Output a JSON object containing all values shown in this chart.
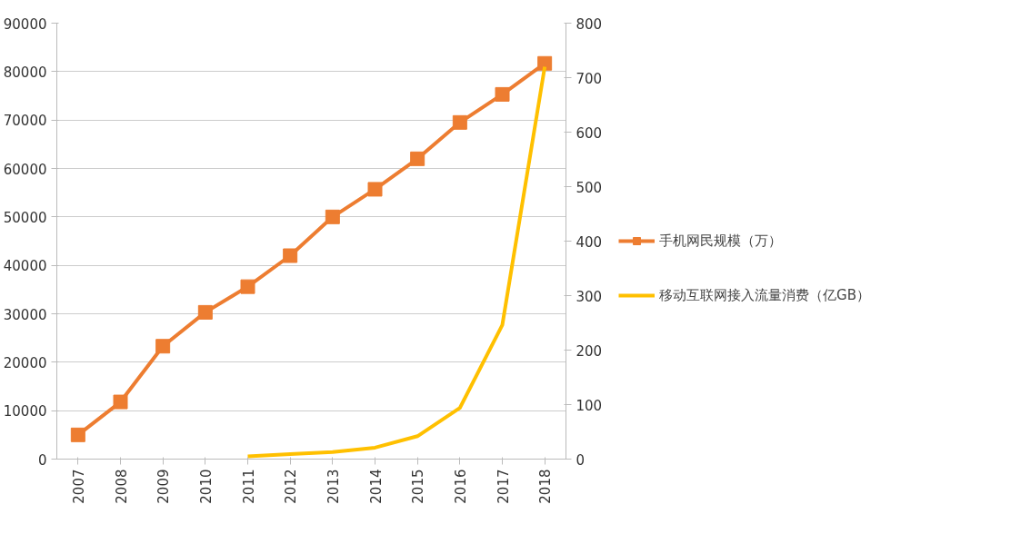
{
  "chart_data": {
    "type": "line",
    "categories": [
      "2007",
      "2008",
      "2009",
      "2010",
      "2011",
      "2012",
      "2013",
      "2014",
      "2015",
      "2016",
      "2017",
      "2018"
    ],
    "series": [
      {
        "name": "手机网民规模（万）",
        "color": "#ed7d31",
        "marker": "square",
        "values": [
          5000,
          11800,
          23300,
          30300,
          35600,
          42000,
          50000,
          55700,
          62000,
          69500,
          75300,
          81700
        ]
      },
      {
        "name": "移动互联网接入流量消费（亿GB）",
        "color": "#ffc000",
        "marker": "none",
        "axis": "y2",
        "values": [
          null,
          null,
          null,
          null,
          5,
          9,
          13,
          21,
          42,
          94,
          246,
          720
        ]
      }
    ],
    "ylim": [
      0,
      90000
    ],
    "yticks": [
      0,
      10000,
      20000,
      30000,
      40000,
      50000,
      60000,
      70000,
      80000,
      90000
    ],
    "y2lim": [
      0,
      800
    ],
    "y2ticks": [
      0,
      100,
      200,
      300,
      400,
      500,
      600,
      700,
      800
    ],
    "grid": "y",
    "legend": "right"
  }
}
